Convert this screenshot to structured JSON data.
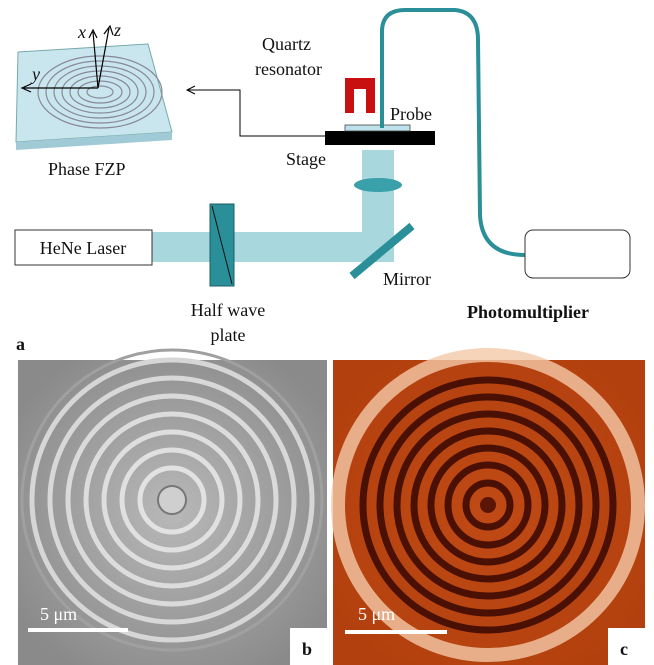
{
  "panel_a": {
    "label": "a",
    "axes": {
      "x": "x",
      "y": "y",
      "z": "z"
    },
    "sample": "Phase FZP",
    "resonator": [
      "Quartz",
      "resonator"
    ],
    "probe": "Probe",
    "stage": "Stage",
    "laser": "HeNe Laser",
    "mirror": "Mirror",
    "waveplate": [
      "Half wave",
      "plate"
    ],
    "detector": "Photomultiplier"
  },
  "panel_b": {
    "label": "b",
    "scale_bar": "5 μm"
  },
  "panel_c": {
    "label": "c",
    "scale_bar": "5 μm"
  }
}
